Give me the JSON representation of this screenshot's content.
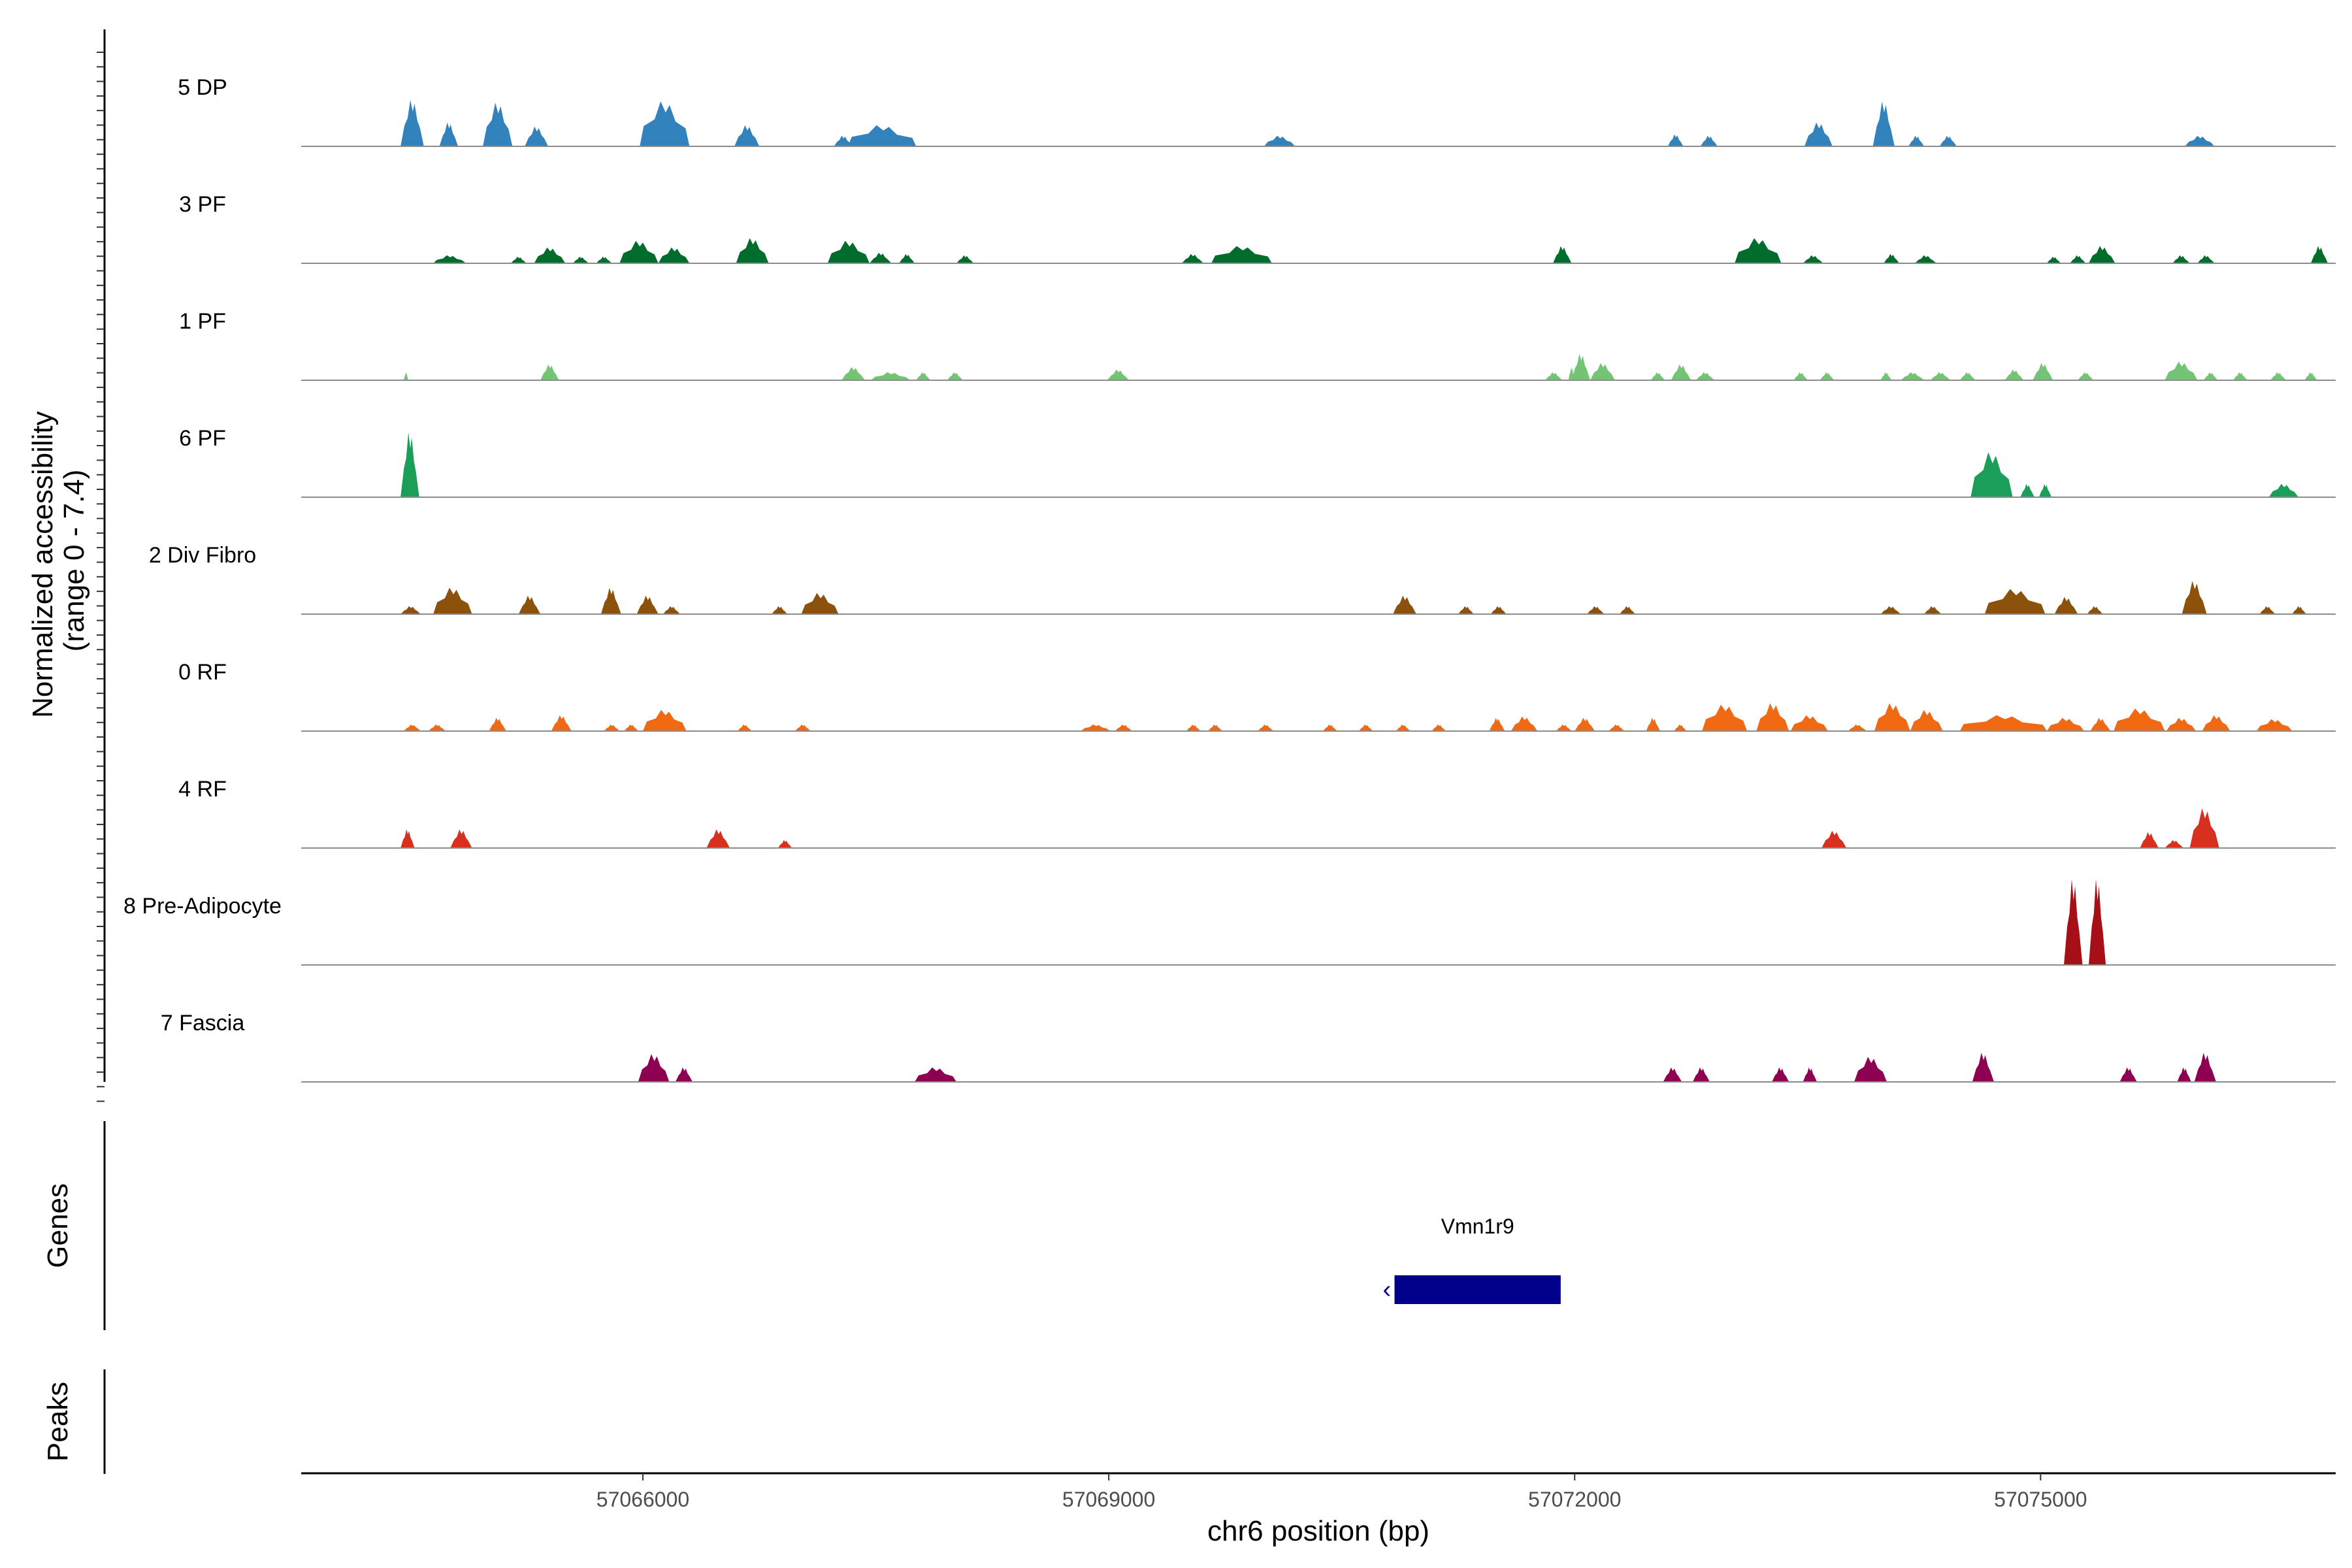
{
  "chart_data": {
    "type": "area",
    "subtype": "genome-coverage-track",
    "chromosome": "chr6",
    "x_range": [
      57063800,
      57076900
    ],
    "xlabel": "chr6 position (bp)",
    "x_ticks": [
      {
        "value": 57066000,
        "label": "57066000"
      },
      {
        "value": 57069000,
        "label": "57069000"
      },
      {
        "value": 57072000,
        "label": "57072000"
      },
      {
        "value": 57075000,
        "label": "57075000"
      }
    ],
    "y_axis_title_line1": "Normalized accessibility",
    "y_axis_title_line2": "(range 0 - 7.4)",
    "y_range": [
      0,
      7.4
    ],
    "tracks": [
      {
        "name": "5 DP",
        "color": "#3182BD",
        "peaks": [
          [
            57064440,
            57064590,
            3.5
          ],
          [
            57064690,
            57064810,
            1.8
          ],
          [
            57064970,
            57065160,
            3.3
          ],
          [
            57065240,
            57065390,
            1.5
          ],
          [
            57065980,
            57066300,
            3.4
          ],
          [
            57066590,
            57066750,
            1.6
          ],
          [
            57067230,
            57067350,
            0.8
          ],
          [
            57067320,
            57067760,
            1.6
          ],
          [
            57070000,
            57070200,
            0.8
          ],
          [
            57072600,
            57072700,
            0.9
          ],
          [
            57072810,
            57072920,
            0.8
          ],
          [
            57073480,
            57073660,
            1.8
          ],
          [
            57073920,
            57074060,
            3.4
          ],
          [
            57074150,
            57074250,
            0.8
          ],
          [
            57074350,
            57074460,
            0.8
          ],
          [
            57075930,
            57076120,
            0.8
          ]
        ]
      },
      {
        "name": "3 PF",
        "color": "#006D2C",
        "peaks": [
          [
            57064650,
            57064860,
            0.6
          ],
          [
            57065150,
            57065250,
            0.5
          ],
          [
            57065300,
            57065500,
            1.2
          ],
          [
            57065550,
            57065650,
            0.5
          ],
          [
            57065700,
            57065800,
            0.5
          ],
          [
            57065850,
            57066100,
            1.7
          ],
          [
            57066100,
            57066300,
            1.2
          ],
          [
            57066600,
            57066810,
            1.9
          ],
          [
            57067190,
            57067460,
            1.7
          ],
          [
            57067460,
            57067600,
            0.8
          ],
          [
            57067650,
            57067750,
            0.7
          ],
          [
            57068020,
            57068130,
            0.6
          ],
          [
            57069470,
            57069610,
            0.7
          ],
          [
            57069660,
            57070050,
            1.3
          ],
          [
            57071860,
            57071980,
            1.3
          ],
          [
            57073030,
            57073330,
            1.9
          ],
          [
            57073470,
            57073600,
            0.6
          ],
          [
            57073990,
            57074090,
            0.7
          ],
          [
            57074190,
            57074330,
            0.6
          ],
          [
            57075040,
            57075130,
            0.5
          ],
          [
            57075190,
            57075290,
            0.6
          ],
          [
            57075310,
            57075480,
            1.3
          ],
          [
            57075850,
            57075960,
            0.6
          ],
          [
            57076010,
            57076120,
            0.6
          ],
          [
            57076740,
            57076850,
            1.3
          ]
        ]
      },
      {
        "name": "1 PF",
        "color": "#74C476",
        "peaks": [
          [
            57064460,
            57064490,
            0.6
          ],
          [
            57065340,
            57065460,
            1.2
          ],
          [
            57067280,
            57067430,
            1.0
          ],
          [
            57067470,
            57067720,
            0.6
          ],
          [
            57067760,
            57067850,
            0.6
          ],
          [
            57067960,
            57068060,
            0.6
          ],
          [
            57068990,
            57069130,
            0.8
          ],
          [
            57071810,
            57071920,
            0.6
          ],
          [
            57071960,
            57072000,
            1.0
          ],
          [
            57071980,
            57072100,
            2.0
          ],
          [
            57072100,
            57072260,
            1.3
          ],
          [
            57072490,
            57072580,
            0.6
          ],
          [
            57072620,
            57072750,
            1.2
          ],
          [
            57072780,
            57072900,
            0.6
          ],
          [
            57073410,
            57073500,
            0.6
          ],
          [
            57073580,
            57073670,
            0.6
          ],
          [
            57073970,
            57074040,
            0.6
          ],
          [
            57074100,
            57074250,
            0.6
          ],
          [
            57074290,
            57074420,
            0.6
          ],
          [
            57074480,
            57074580,
            0.6
          ],
          [
            57074770,
            57074890,
            0.8
          ],
          [
            57074950,
            57075080,
            1.3
          ],
          [
            57075240,
            57075340,
            0.6
          ],
          [
            57075800,
            57076010,
            1.4
          ],
          [
            57076050,
            57076140,
            0.6
          ],
          [
            57076240,
            57076330,
            0.6
          ],
          [
            57076480,
            57076580,
            0.6
          ],
          [
            57076700,
            57076780,
            0.6
          ]
        ]
      },
      {
        "name": "6 PF",
        "color": "#1B9E58",
        "peaks": [
          [
            57064440,
            57064560,
            4.9
          ],
          [
            57074550,
            57074820,
            3.4
          ],
          [
            57074870,
            57074960,
            1.0
          ],
          [
            57074990,
            57075070,
            1.0
          ],
          [
            57076470,
            57076660,
            1.0
          ]
        ]
      },
      {
        "name": "2 Div Fibro",
        "color": "#8C510A",
        "peaks": [
          [
            57064440,
            57064570,
            0.6
          ],
          [
            57064650,
            57064900,
            2.0
          ],
          [
            57065200,
            57065340,
            1.4
          ],
          [
            57065730,
            57065860,
            2.0
          ],
          [
            57065960,
            57066100,
            1.4
          ],
          [
            57066130,
            57066240,
            0.6
          ],
          [
            57066830,
            57066930,
            0.6
          ],
          [
            57067020,
            57067260,
            1.6
          ],
          [
            57070830,
            57070980,
            1.4
          ],
          [
            57071250,
            57071350,
            0.6
          ],
          [
            57071460,
            57071560,
            0.6
          ],
          [
            57072080,
            57072190,
            0.6
          ],
          [
            57072290,
            57072390,
            0.6
          ],
          [
            57073970,
            57074100,
            0.6
          ],
          [
            57074250,
            57074360,
            0.6
          ],
          [
            57074640,
            57075030,
            1.9
          ],
          [
            57075090,
            57075240,
            1.3
          ],
          [
            57075300,
            57075400,
            0.6
          ],
          [
            57075910,
            57076070,
            2.5
          ],
          [
            57076410,
            57076510,
            0.6
          ],
          [
            57076620,
            57076710,
            0.6
          ]
        ]
      },
      {
        "name": "0 RF",
        "color": "#F16913",
        "peaks": [
          [
            57064460,
            57064570,
            0.5
          ],
          [
            57064620,
            57064730,
            0.5
          ],
          [
            57065010,
            57065120,
            1.0
          ],
          [
            57065410,
            57065540,
            1.2
          ],
          [
            57065750,
            57065850,
            0.5
          ],
          [
            57065880,
            57065970,
            0.5
          ],
          [
            57066000,
            57066280,
            1.6
          ],
          [
            57066610,
            57066700,
            0.5
          ],
          [
            57066980,
            57067080,
            0.5
          ],
          [
            57068820,
            57069010,
            0.5
          ],
          [
            57069040,
            57069150,
            0.5
          ],
          [
            57069500,
            57069590,
            0.5
          ],
          [
            57069640,
            57069730,
            0.5
          ],
          [
            57069960,
            57070060,
            0.5
          ],
          [
            57070380,
            57070470,
            0.5
          ],
          [
            57070610,
            57070700,
            0.5
          ],
          [
            57070850,
            57070940,
            0.5
          ],
          [
            57071080,
            57071170,
            0.5
          ],
          [
            57071450,
            57071550,
            1.0
          ],
          [
            57071590,
            57071760,
            1.1
          ],
          [
            57071880,
            57071980,
            0.5
          ],
          [
            57072000,
            57072130,
            1.0
          ],
          [
            57072220,
            57072320,
            0.5
          ],
          [
            57072460,
            57072550,
            1.0
          ],
          [
            57072640,
            57072720,
            0.5
          ],
          [
            57072820,
            57073110,
            2.0
          ],
          [
            57073170,
            57073380,
            2.1
          ],
          [
            57073390,
            57073630,
            1.2
          ],
          [
            57073760,
            57073880,
            0.5
          ],
          [
            57073930,
            57074160,
            2.1
          ],
          [
            57074160,
            57074370,
            1.6
          ],
          [
            57074480,
            57075040,
            1.2
          ],
          [
            57075040,
            57075280,
            1.0
          ],
          [
            57075320,
            57075450,
            1.0
          ],
          [
            57075470,
            57075800,
            1.7
          ],
          [
            57075810,
            57076000,
            1.0
          ],
          [
            57076040,
            57076220,
            1.2
          ],
          [
            57076390,
            57076620,
            0.9
          ]
        ]
      },
      {
        "name": "4 RF",
        "color": "#D7301F",
        "peaks": [
          [
            57064440,
            57064530,
            1.4
          ],
          [
            57064760,
            57064900,
            1.4
          ],
          [
            57066410,
            57066560,
            1.4
          ],
          [
            57066870,
            57066960,
            0.6
          ],
          [
            57073590,
            57073750,
            1.3
          ],
          [
            57075640,
            57075760,
            1.2
          ],
          [
            57075800,
            57075920,
            0.6
          ],
          [
            57075960,
            57076150,
            3.0
          ]
        ]
      },
      {
        "name": "8 Pre-Adipocyte",
        "color": "#A50F15",
        "peaks": [
          [
            57075150,
            57075270,
            6.5
          ],
          [
            57075310,
            57075420,
            6.5
          ]
        ]
      },
      {
        "name": "7 Fascia",
        "color": "#8E0152",
        "peaks": [
          [
            57065970,
            57066170,
            2.1
          ],
          [
            57066210,
            57066320,
            1.1
          ],
          [
            57067750,
            57068020,
            1.1
          ],
          [
            57072570,
            57072690,
            1.1
          ],
          [
            57072760,
            57072870,
            1.1
          ],
          [
            57073270,
            57073380,
            1.1
          ],
          [
            57073470,
            57073560,
            1.1
          ],
          [
            57073800,
            57074010,
            1.9
          ],
          [
            57074560,
            57074700,
            2.2
          ],
          [
            57075510,
            57075620,
            1.1
          ],
          [
            57075880,
            57075970,
            1.1
          ],
          [
            57075990,
            57076130,
            2.2
          ]
        ]
      }
    ],
    "genes_title": "Genes",
    "genes": [
      {
        "name": "Vmn1r9",
        "start": 57070840,
        "end": 57071910,
        "strand": "-",
        "color": "#00008B"
      }
    ],
    "peaks_title": "Peaks",
    "peaks": []
  }
}
